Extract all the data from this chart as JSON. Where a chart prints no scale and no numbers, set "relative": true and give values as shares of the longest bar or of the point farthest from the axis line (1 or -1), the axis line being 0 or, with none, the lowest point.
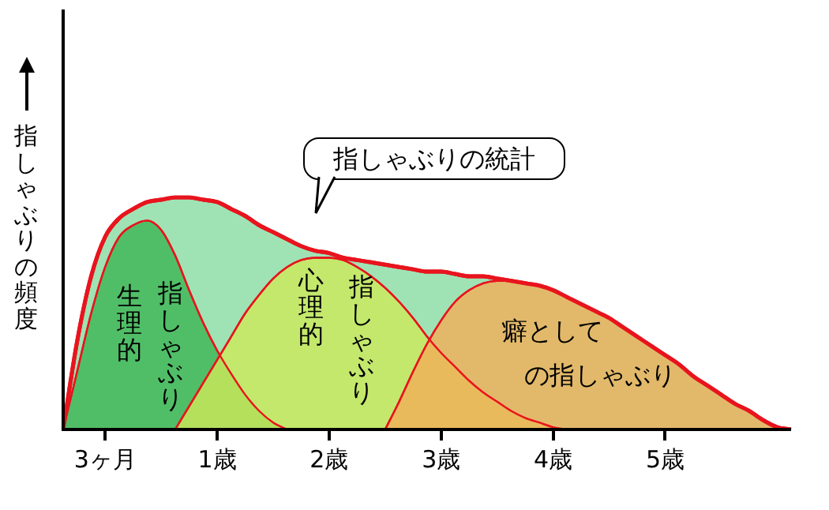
{
  "chart_data": {
    "type": "area",
    "relative": true,
    "title": "指しゃぶりの統計",
    "ylabel": "指しゃぶりの頻度",
    "tick_labels": "x",
    "categories": [
      null,
      null,
      null,
      "3ヶ月",
      null,
      null,
      null,
      null,
      null,
      null,
      null,
      "1歳",
      null,
      null,
      null,
      null,
      null,
      null,
      null,
      "2歳",
      null,
      null,
      null,
      null,
      null,
      null,
      null,
      "3歳",
      null,
      null,
      null,
      null,
      null,
      null,
      null,
      "4歳",
      null,
      null,
      null,
      null,
      null,
      null,
      null,
      "5歳",
      null,
      null,
      null,
      null,
      null,
      null,
      null,
      null,
      null
    ],
    "series": [
      {
        "color": "#9fe3b4",
        "values": [
          0,
          0.38,
          0.66,
          0.83,
          0.91,
          0.95,
          0.98,
          0.99,
          1,
          1,
          0.99,
          0.98,
          0.95,
          0.92,
          0.88,
          0.85,
          0.82,
          0.79,
          0.77,
          0.76,
          0.74,
          0.73,
          0.72,
          0.71,
          0.7,
          0.69,
          0.68,
          0.68,
          0.67,
          0.66,
          0.66,
          0.65,
          0.64,
          0.63,
          0.62,
          0.6,
          0.57,
          0.54,
          0.51,
          0.48,
          0.44,
          0.4,
          0.36,
          0.32,
          0.28,
          0.23,
          0.19,
          0.15,
          0.11,
          0.08,
          0.04,
          0.01,
          0
        ]
      },
      {
        "color": "#3cb454",
        "values": [
          0,
          0.25,
          0.5,
          0.7,
          0.83,
          0.88,
          0.9,
          0.86,
          0.75,
          0.6,
          0.46,
          0.34,
          0.24,
          0.15,
          0.08,
          0.03,
          0,
          null,
          null,
          null,
          null,
          null,
          null,
          null,
          null,
          null,
          null,
          null,
          null,
          null,
          null,
          null,
          null,
          null,
          null,
          null,
          null,
          null,
          null,
          null,
          null,
          null,
          null,
          null,
          null,
          null,
          null,
          null,
          null,
          null,
          null,
          null,
          null
        ]
      },
      {
        "color": "#cde85a",
        "values": [
          null,
          null,
          null,
          null,
          null,
          null,
          null,
          null,
          0,
          0.1,
          0.2,
          0.3,
          0.4,
          0.5,
          0.58,
          0.65,
          0.7,
          0.73,
          0.74,
          0.74,
          0.73,
          0.7,
          0.66,
          0.61,
          0.55,
          0.48,
          0.4,
          0.33,
          0.27,
          0.21,
          0.16,
          0.12,
          0.08,
          0.05,
          0.03,
          0.01,
          0,
          null,
          null,
          null,
          null,
          null,
          null,
          null,
          null,
          null,
          null,
          null,
          null,
          null,
          null,
          null,
          null
        ]
      },
      {
        "color": "#f2ae58",
        "values": [
          null,
          null,
          null,
          null,
          null,
          null,
          null,
          null,
          null,
          null,
          null,
          null,
          null,
          null,
          null,
          null,
          null,
          null,
          null,
          null,
          null,
          null,
          null,
          0,
          0.12,
          0.25,
          0.37,
          0.47,
          0.55,
          0.6,
          0.63,
          0.64,
          0.64,
          0.63,
          0.62,
          0.6,
          0.57,
          0.54,
          0.51,
          0.48,
          0.44,
          0.4,
          0.36,
          0.32,
          0.28,
          0.23,
          0.19,
          0.15,
          0.11,
          0.08,
          0.04,
          0.01,
          0
        ]
      }
    ],
    "annotations": [
      "生理的",
      "指しゃぶり",
      "心理的",
      "指しゃぶり",
      "癖として",
      "の指しゃぶり"
    ]
  }
}
